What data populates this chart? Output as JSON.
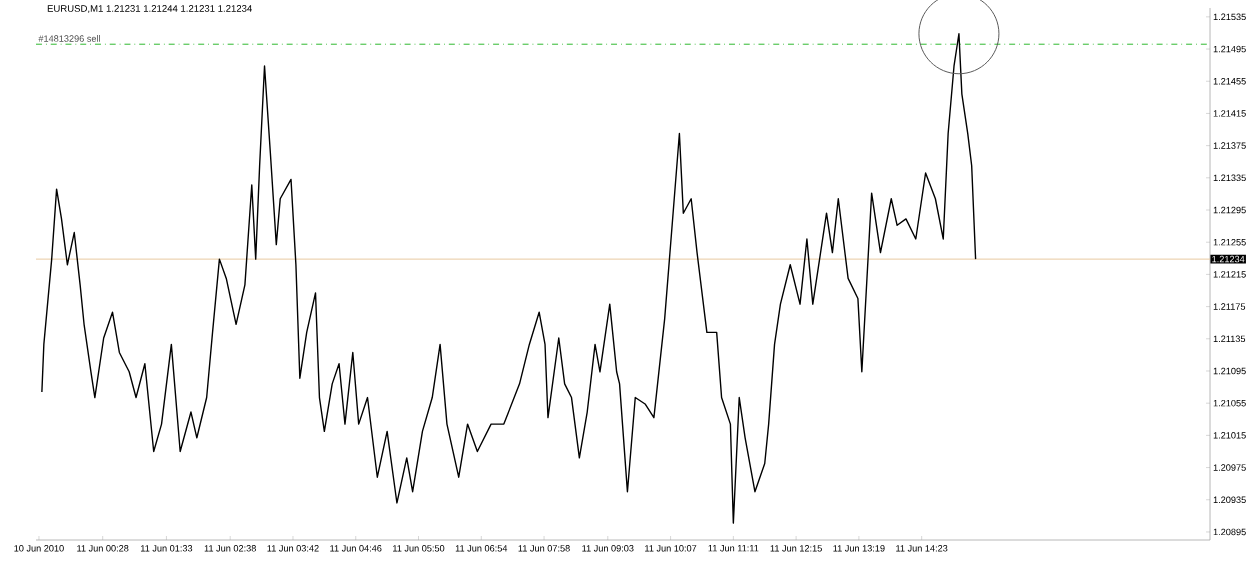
{
  "chart_data": {
    "type": "line",
    "title": "EURUSD,M1  1.21231 1.21244 1.21231 1.21234",
    "x": [
      "2010-06-10T23:26",
      "2010-06-10T23:28",
      "2010-06-10T23:36",
      "2010-06-10T23:41",
      "2010-06-10T23:46",
      "2010-06-10T23:52",
      "2010-06-10T23:59",
      "2010-06-11T00:05",
      "2010-06-11T00:09",
      "2010-06-11T00:16",
      "2010-06-11T00:20",
      "2010-06-11T00:29",
      "2010-06-11T00:38",
      "2010-06-11T00:45",
      "2010-06-11T00:55",
      "2010-06-11T01:02",
      "2010-06-11T01:11",
      "2010-06-11T01:20",
      "2010-06-11T01:28",
      "2010-06-11T01:38",
      "2010-06-11T01:47",
      "2010-06-11T01:58",
      "2010-06-11T02:04",
      "2010-06-11T02:14",
      "2010-06-11T02:20",
      "2010-06-11T02:27",
      "2010-06-11T02:34",
      "2010-06-11T02:44",
      "2010-06-11T02:53",
      "2010-06-11T03:00",
      "2010-06-11T03:04",
      "2010-06-11T03:08",
      "2010-06-11T03:13",
      "2010-06-11T03:19",
      "2010-06-11T03:25",
      "2010-06-11T03:29",
      "2010-06-11T03:40",
      "2010-06-11T03:45",
      "2010-06-11T03:49",
      "2010-06-11T03:56",
      "2010-06-11T04:05",
      "2010-06-11T04:09",
      "2010-06-11T04:14",
      "2010-06-11T04:22",
      "2010-06-11T04:29",
      "2010-06-11T04:35",
      "2010-06-11T04:43",
      "2010-06-11T04:49",
      "2010-06-11T04:58",
      "2010-06-11T05:08",
      "2010-06-11T05:18",
      "2010-06-11T05:28",
      "2010-06-11T05:38",
      "2010-06-11T05:44",
      "2010-06-11T05:54",
      "2010-06-11T06:04",
      "2010-06-11T06:12",
      "2010-06-11T06:19",
      "2010-06-11T06:31",
      "2010-06-11T06:40",
      "2010-06-11T06:50",
      "2010-06-11T07:04",
      "2010-06-11T07:17",
      "2010-06-11T07:33",
      "2010-06-11T07:43",
      "2010-06-11T07:53",
      "2010-06-11T07:59",
      "2010-06-11T08:02",
      "2010-06-11T08:13",
      "2010-06-11T08:19",
      "2010-06-11T08:26",
      "2010-06-11T08:34",
      "2010-06-11T08:42",
      "2010-06-11T08:50",
      "2010-06-11T08:55",
      "2010-06-11T09:05",
      "2010-06-11T09:12",
      "2010-06-11T09:15",
      "2010-06-11T09:23",
      "2010-06-11T09:31",
      "2010-06-11T09:41",
      "2010-06-11T09:50",
      "2010-06-11T10:01",
      "2010-06-11T10:08",
      "2010-06-11T10:16",
      "2010-06-11T10:20",
      "2010-06-11T10:28",
      "2010-06-11T10:34",
      "2010-06-11T10:44",
      "2010-06-11T10:54",
      "2010-06-11T10:59",
      "2010-06-11T11:08",
      "2010-06-11T11:11",
      "2010-06-11T11:17",
      "2010-06-11T11:23",
      "2010-06-11T11:33",
      "2010-06-11T11:43",
      "2010-06-11T11:47",
      "2010-06-11T11:53",
      "2010-06-11T11:59",
      "2010-06-11T12:09",
      "2010-06-11T12:19",
      "2010-06-11T12:26",
      "2010-06-11T12:32",
      "2010-06-11T12:46",
      "2010-06-11T12:52",
      "2010-06-11T12:58",
      "2010-06-11T13:08",
      "2010-06-11T13:18",
      "2010-06-11T13:22",
      "2010-06-11T13:32",
      "2010-06-11T13:41",
      "2010-06-11T13:52",
      "2010-06-11T13:58",
      "2010-06-11T14:07",
      "2010-06-11T14:17",
      "2010-06-11T14:27",
      "2010-06-11T14:37",
      "2010-06-11T14:45",
      "2010-06-11T14:50",
      "2010-06-11T14:56",
      "2010-06-11T15:01",
      "2010-06-11T15:04",
      "2010-06-11T15:10",
      "2010-06-11T15:14",
      "2010-06-11T15:18"
    ],
    "values": [
      1.21069,
      1.21128,
      1.21234,
      1.21321,
      1.21284,
      1.21227,
      1.21267,
      1.21202,
      1.21153,
      1.21094,
      1.21062,
      1.21136,
      1.21168,
      1.21118,
      1.21094,
      1.21062,
      1.21104,
      1.20995,
      1.21029,
      1.21128,
      1.20995,
      1.21044,
      1.21012,
      1.21062,
      1.21143,
      1.21234,
      1.2121,
      1.21153,
      1.21202,
      1.21326,
      1.21234,
      1.2135,
      1.21474,
      1.21365,
      1.21252,
      1.21309,
      1.21333,
      1.21227,
      1.21086,
      1.21143,
      1.21192,
      1.21062,
      1.2102,
      1.21079,
      1.21104,
      1.21029,
      1.21118,
      1.21029,
      1.21062,
      1.20963,
      1.2102,
      1.20931,
      1.20987,
      1.20945,
      1.2102,
      1.21062,
      1.21128,
      1.21029,
      1.20963,
      1.21029,
      1.20995,
      1.21029,
      1.21029,
      1.21079,
      1.21128,
      1.21168,
      1.21128,
      1.21037,
      1.21136,
      1.21079,
      1.21062,
      1.20987,
      1.21044,
      1.21128,
      1.21094,
      1.21178,
      1.21094,
      1.21079,
      1.20945,
      1.21062,
      1.21054,
      1.21037,
      1.2116,
      1.21267,
      1.2139,
      1.21291,
      1.21309,
      1.21242,
      1.21143,
      1.21143,
      1.21062,
      1.21029,
      1.20906,
      1.21062,
      1.21012,
      1.20945,
      1.2098,
      1.21029,
      1.21128,
      1.21178,
      1.21227,
      1.21178,
      1.21259,
      1.21178,
      1.21291,
      1.21242,
      1.21309,
      1.2121,
      1.21185,
      1.21094,
      1.21316,
      1.21242,
      1.21309,
      1.21276,
      1.21284,
      1.21259,
      1.21341,
      1.21309,
      1.21259,
      1.2139,
      1.21474,
      1.21514,
      1.21439,
      1.2139,
      1.2135,
      1.21234
    ],
    "color": "#000000",
    "marker": "none",
    "line_style": "solid",
    "xlim": [
      "2010-06-10T23:20",
      "2010-06-11T19:17"
    ],
    "ylim": [
      1.20885,
      1.21546
    ],
    "xticks": [
      {
        "value": "2010-06-10T23:23",
        "label": "10 Jun 2010"
      },
      {
        "value": "2010-06-11T00:28",
        "label": "11 Jun 00:28"
      },
      {
        "value": "2010-06-11T01:33",
        "label": "11 Jun 01:33"
      },
      {
        "value": "2010-06-11T02:38",
        "label": "11 Jun 02:38"
      },
      {
        "value": "2010-06-11T03:42",
        "label": "11 Jun 03:42"
      },
      {
        "value": "2010-06-11T04:46",
        "label": "11 Jun 04:46"
      },
      {
        "value": "2010-06-11T05:50",
        "label": "11 Jun 05:50"
      },
      {
        "value": "2010-06-11T06:54",
        "label": "11 Jun 06:54"
      },
      {
        "value": "2010-06-11T07:58",
        "label": "11 Jun 07:58"
      },
      {
        "value": "2010-06-11T09:03",
        "label": "11 Jun 09:03"
      },
      {
        "value": "2010-06-11T10:07",
        "label": "11 Jun 10:07"
      },
      {
        "value": "2010-06-11T11:11",
        "label": "11 Jun 11:11"
      },
      {
        "value": "2010-06-11T12:15",
        "label": "11 Jun 12:15"
      },
      {
        "value": "2010-06-11T13:19",
        "label": "11 Jun 13:19"
      },
      {
        "value": "2010-06-11T14:23",
        "label": "11 Jun 14:23"
      }
    ],
    "yticks": [
      {
        "value": 1.21535,
        "label": "1.21535"
      },
      {
        "value": 1.21495,
        "label": "1.21495"
      },
      {
        "value": 1.21455,
        "label": "1.21455"
      },
      {
        "value": 1.21415,
        "label": "1.21415"
      },
      {
        "value": 1.21375,
        "label": "1.21375"
      },
      {
        "value": 1.21335,
        "label": "1.21335"
      },
      {
        "value": 1.21295,
        "label": "1.21295"
      },
      {
        "value": 1.21255,
        "label": "1.21255"
      },
      {
        "value": 1.21215,
        "label": "1.21215"
      },
      {
        "value": 1.21175,
        "label": "1.21175"
      },
      {
        "value": 1.21135,
        "label": "1.21135"
      },
      {
        "value": 1.21095,
        "label": "1.21095"
      },
      {
        "value": 1.21055,
        "label": "1.21055"
      },
      {
        "value": 1.21015,
        "label": "1.21015"
      },
      {
        "value": 1.20975,
        "label": "1.20975"
      },
      {
        "value": 1.20935,
        "label": "1.20935"
      },
      {
        "value": 1.20895,
        "label": "1.20895"
      }
    ],
    "ref_lines": [
      {
        "axis": "y",
        "value": 1.21501,
        "label": "#14813296 sell",
        "color": "#2eb82e",
        "line_style": "dashed"
      },
      {
        "axis": "y",
        "value": 1.21234,
        "label": "1.21234",
        "color": "#e8c9a0",
        "line_style": "solid"
      }
    ]
  }
}
